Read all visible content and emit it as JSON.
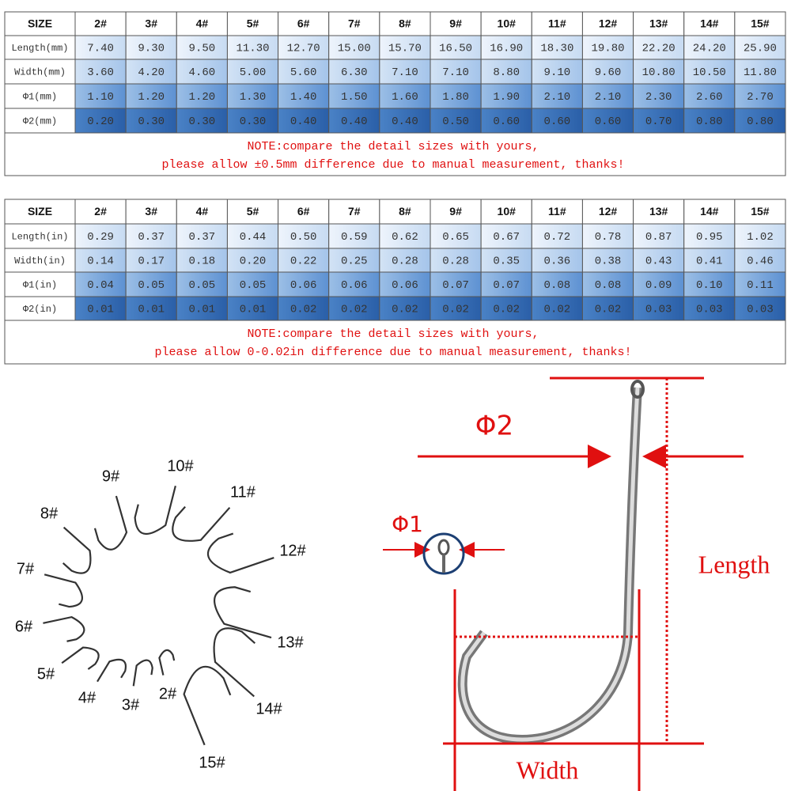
{
  "table_mm": {
    "header": [
      "SIZE",
      "2#",
      "3#",
      "4#",
      "5#",
      "6#",
      "7#",
      "8#",
      "9#",
      "10#",
      "11#",
      "12#",
      "13#",
      "14#",
      "15#"
    ],
    "rows": [
      [
        "Length(mm)",
        "7.40",
        "9.30",
        "9.50",
        "11.30",
        "12.70",
        "15.00",
        "15.70",
        "16.50",
        "16.90",
        "18.30",
        "19.80",
        "22.20",
        "24.20",
        "25.90"
      ],
      [
        "Width(mm)",
        "3.60",
        "4.20",
        "4.60",
        "5.00",
        "5.60",
        "6.30",
        "7.10",
        "7.10",
        "8.80",
        "9.10",
        "9.60",
        "10.80",
        "10.50",
        "11.80"
      ],
      [
        "Φ1(mm)",
        "1.10",
        "1.20",
        "1.20",
        "1.30",
        "1.40",
        "1.50",
        "1.60",
        "1.80",
        "1.90",
        "2.10",
        "2.10",
        "2.30",
        "2.60",
        "2.70"
      ],
      [
        "Φ2(mm)",
        "0.20",
        "0.30",
        "0.30",
        "0.30",
        "0.40",
        "0.40",
        "0.40",
        "0.50",
        "0.60",
        "0.60",
        "0.60",
        "0.70",
        "0.80",
        "0.80"
      ]
    ],
    "note": [
      "NOTE:compare the detail sizes with yours,",
      "please allow ±0.5mm difference due to manual measurement, thanks!"
    ]
  },
  "table_in": {
    "header": [
      "SIZE",
      "2#",
      "3#",
      "4#",
      "5#",
      "6#",
      "7#",
      "8#",
      "9#",
      "10#",
      "11#",
      "12#",
      "13#",
      "14#",
      "15#"
    ],
    "rows": [
      [
        "Length(in)",
        "0.29",
        "0.37",
        "0.37",
        "0.44",
        "0.50",
        "0.59",
        "0.62",
        "0.65",
        "0.67",
        "0.72",
        "0.78",
        "0.87",
        "0.95",
        "1.02"
      ],
      [
        "Width(in)",
        "0.14",
        "0.17",
        "0.18",
        "0.20",
        "0.22",
        "0.25",
        "0.28",
        "0.28",
        "0.35",
        "0.36",
        "0.38",
        "0.43",
        "0.41",
        "0.46"
      ],
      [
        "Φ1(in)",
        "0.04",
        "0.05",
        "0.05",
        "0.05",
        "0.06",
        "0.06",
        "0.06",
        "0.07",
        "0.07",
        "0.08",
        "0.08",
        "0.09",
        "0.10",
        "0.11"
      ],
      [
        "Φ2(in)",
        "0.01",
        "0.01",
        "0.01",
        "0.01",
        "0.02",
        "0.02",
        "0.02",
        "0.02",
        "0.02",
        "0.02",
        "0.02",
        "0.03",
        "0.03",
        "0.03"
      ]
    ],
    "note": [
      "NOTE:compare the detail sizes with yours,",
      "please allow 0-0.02in difference due to manual measurement, thanks!"
    ]
  },
  "hook_sizes": [
    "2#",
    "3#",
    "4#",
    "5#",
    "6#",
    "7#",
    "8#",
    "9#",
    "10#",
    "11#",
    "12#",
    "13#",
    "14#",
    "15#"
  ],
  "diagram": {
    "phi2": "Φ2",
    "phi1": "Φ1",
    "length": "Length",
    "width": "Width"
  }
}
